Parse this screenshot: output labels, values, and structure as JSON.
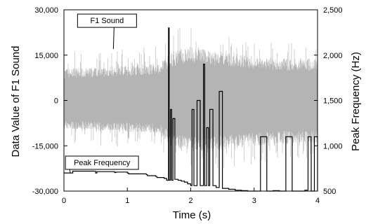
{
  "chart_data": {
    "type": "line",
    "title": "",
    "xlabel": "Time (s)",
    "ylabel_left": "Data Value of F1 Sound",
    "ylabel_right": "Peak Frequency (Hz)",
    "xlim": [
      0,
      4
    ],
    "ylim_left": [
      -30000,
      30000
    ],
    "ylim_right": [
      500,
      2500
    ],
    "x_ticks": [
      0,
      1,
      2,
      3,
      4
    ],
    "x_tick_labels": [
      "0",
      "1",
      "2",
      "3",
      "4"
    ],
    "y_left_ticks": [
      -30000,
      -15000,
      0,
      15000,
      30000
    ],
    "y_left_tick_labels": [
      "-30,000",
      "-15,000",
      "0",
      "15,000",
      "30,000"
    ],
    "y_right_ticks": [
      500,
      1000,
      1500,
      2000,
      2500
    ],
    "y_right_tick_labels": [
      "500",
      "1,000",
      "1,500",
      "2,000",
      "2,500"
    ],
    "grid": false,
    "legend": "none",
    "series": [
      {
        "name": "F1 Sound",
        "axis": "left",
        "color": "#b4b4b4",
        "style": "dense waveform envelope",
        "envelope": {
          "x": [
            0.0,
            0.5,
            1.0,
            1.5,
            1.7,
            2.0,
            2.2,
            2.5,
            3.0,
            3.5,
            4.0
          ],
          "upper": [
            10500,
            11000,
            11500,
            12500,
            16000,
            18000,
            17500,
            16000,
            14500,
            14000,
            14000
          ],
          "lower": [
            -9500,
            -10000,
            -10500,
            -11000,
            -15500,
            -17000,
            -17500,
            -16500,
            -15000,
            -14500,
            -14500
          ],
          "peak_upper": [
            16500,
            17000,
            17500,
            18500,
            23000,
            26000,
            24500,
            23000,
            20000,
            19500,
            19000
          ],
          "peak_lower": [
            -14500,
            -15000,
            -15500,
            -16000,
            -21500,
            -24500,
            -25000,
            -23000,
            -21000,
            -20000,
            -20000
          ]
        }
      },
      {
        "name": "Peak Frequency",
        "axis": "right",
        "color": "#000000",
        "style": "step",
        "x": [
          0.0,
          0.12,
          0.14,
          0.5,
          0.52,
          0.8,
          0.82,
          1.0,
          1.02,
          1.3,
          1.32,
          1.45,
          1.47,
          1.58,
          1.62,
          1.65,
          1.66,
          1.68,
          1.7,
          1.72,
          1.75,
          1.8,
          1.85,
          1.9,
          1.95,
          2.0,
          2.02,
          2.05,
          2.1,
          2.15,
          2.2,
          2.22,
          2.25,
          2.28,
          2.3,
          2.35,
          2.4,
          2.45,
          2.5,
          2.6,
          2.7,
          2.8,
          2.9,
          3.0,
          3.1,
          3.2,
          3.3,
          3.4,
          3.5,
          3.6,
          3.7,
          3.8,
          3.85,
          3.9,
          3.95,
          4.0
        ],
        "y": [
          700,
          700,
          720,
          700,
          715,
          705,
          710,
          700,
          690,
          680,
          670,
          660,
          650,
          640,
          620,
          2300,
          620,
          1400,
          620,
          1300,
          630,
          620,
          610,
          600,
          580,
          560,
          1400,
          560,
          1500,
          560,
          1900,
          560,
          1200,
          560,
          1400,
          560,
          540,
          1600,
          530,
          520,
          510,
          505,
          500,
          500,
          1100,
          500,
          505,
          500,
          1100,
          500,
          500,
          510,
          1100,
          500,
          1100,
          500
        ]
      }
    ],
    "annotations": [
      {
        "text": "F1 Sound",
        "target_series": "F1 Sound",
        "anchor_x": 0.68,
        "anchor_y_left": 26500
      },
      {
        "text": "Peak Frequency",
        "target_series": "Peak Frequency",
        "anchor_x": 0.6,
        "anchor_y_left": -20500
      }
    ]
  }
}
